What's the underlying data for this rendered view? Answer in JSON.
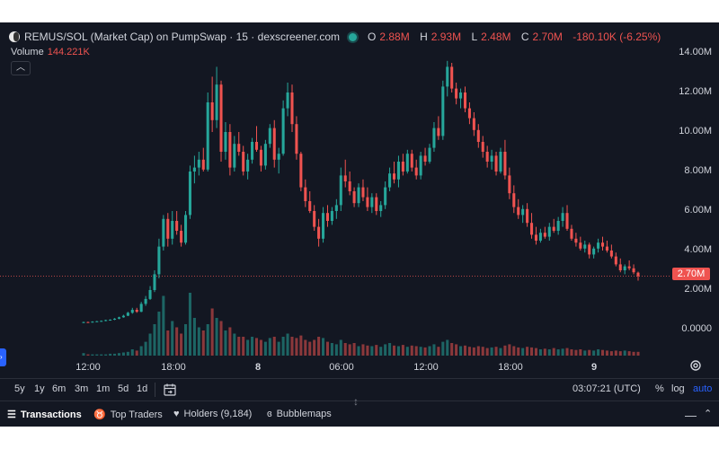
{
  "header": {
    "title": "REMUS/SOL (Market Cap) on PumpSwap · 15 · dexscreener.com",
    "ohlc": {
      "o_label": "O",
      "o_value": "2.88M",
      "h_label": "H",
      "h_value": "2.93M",
      "l_label": "L",
      "l_value": "2.48M",
      "c_label": "C",
      "c_value": "2.70M",
      "change": "-180.10K (-6.25%)"
    }
  },
  "volume": {
    "label": "Volume",
    "value": "144.221K"
  },
  "colors": {
    "background": "#131722",
    "up": "#26a69a",
    "down": "#ef5350",
    "text": "#d1d4dc",
    "accent": "#2962ff"
  },
  "price_axis": {
    "labels": [
      "14.00M",
      "12.00M",
      "10.00M",
      "8.00M",
      "6.00M",
      "4.00M",
      "2.00M",
      "0.0000"
    ]
  },
  "current_price_label": "2.70M",
  "time_axis": {
    "labels": [
      "12:00",
      "18:00",
      "8",
      "06:00",
      "12:00",
      "18:00",
      "9"
    ]
  },
  "toolbar": {
    "ranges": [
      "5y",
      "1y",
      "6m",
      "3m",
      "1m",
      "5d",
      "1d"
    ],
    "clock": "03:07:21 (UTC)",
    "percent": "%",
    "log": "log",
    "auto": "auto"
  },
  "bottom_tabs": {
    "transactions": "Transactions",
    "top_traders": "Top Traders",
    "holders": "Holders (9,184)",
    "bubblemaps": "Bubblemaps"
  },
  "chart_data": {
    "type": "candlestick",
    "y_unit": "market cap (SOL-paired, USD)",
    "ylim": [
      0,
      14500000
    ],
    "x_ticks": [
      "12:00",
      "18:00",
      "8",
      "06:00",
      "12:00",
      "18:00",
      "9"
    ],
    "grid": false,
    "candle_interval": "15",
    "candles": [
      [
        0.35,
        0.4,
        0.33,
        0.38
      ],
      [
        0.38,
        0.4,
        0.34,
        0.36
      ],
      [
        0.36,
        0.42,
        0.35,
        0.4
      ],
      [
        0.4,
        0.44,
        0.38,
        0.42
      ],
      [
        0.42,
        0.46,
        0.4,
        0.44
      ],
      [
        0.44,
        0.5,
        0.42,
        0.48
      ],
      [
        0.48,
        0.52,
        0.45,
        0.5
      ],
      [
        0.5,
        0.58,
        0.48,
        0.55
      ],
      [
        0.55,
        0.65,
        0.52,
        0.62
      ],
      [
        0.62,
        0.75,
        0.6,
        0.7
      ],
      [
        0.7,
        0.9,
        0.68,
        0.85
      ],
      [
        0.85,
        1.1,
        0.8,
        1.0
      ],
      [
        1.0,
        1.1,
        0.85,
        0.9
      ],
      [
        0.9,
        1.4,
        0.88,
        1.3
      ],
      [
        1.3,
        1.7,
        1.2,
        1.55
      ],
      [
        1.55,
        2.2,
        1.5,
        2.0
      ],
      [
        2.0,
        3.0,
        1.9,
        2.8
      ],
      [
        2.8,
        4.6,
        2.6,
        4.2
      ],
      [
        4.2,
        5.8,
        4.0,
        5.6
      ],
      [
        5.6,
        5.9,
        4.2,
        4.6
      ],
      [
        4.6,
        6.0,
        4.3,
        5.5
      ],
      [
        5.5,
        6.0,
        4.8,
        5.0
      ],
      [
        5.0,
        5.3,
        4.2,
        4.4
      ],
      [
        4.4,
        6.0,
        4.3,
        5.8
      ],
      [
        5.8,
        8.3,
        5.6,
        8.0
      ],
      [
        8.0,
        8.8,
        7.4,
        8.2
      ],
      [
        8.2,
        9.0,
        7.8,
        8.6
      ],
      [
        8.6,
        9.2,
        8.0,
        8.1
      ],
      [
        8.1,
        12.0,
        8.0,
        11.5
      ],
      [
        11.5,
        12.8,
        10.0,
        10.6
      ],
      [
        10.6,
        13.3,
        10.2,
        12.4
      ],
      [
        12.4,
        12.6,
        8.5,
        9.0
      ],
      [
        9.0,
        10.5,
        8.6,
        10.0
      ],
      [
        10.0,
        10.4,
        7.8,
        8.2
      ],
      [
        8.2,
        9.8,
        8.0,
        9.4
      ],
      [
        9.4,
        10.0,
        8.8,
        9.0
      ],
      [
        9.0,
        9.3,
        7.8,
        8.0
      ],
      [
        8.0,
        8.9,
        7.6,
        8.6
      ],
      [
        8.6,
        9.7,
        8.4,
        9.5
      ],
      [
        9.5,
        10.3,
        9.0,
        9.1
      ],
      [
        9.1,
        9.3,
        8.0,
        8.3
      ],
      [
        8.3,
        9.6,
        8.1,
        9.4
      ],
      [
        9.4,
        10.4,
        9.2,
        10.2
      ],
      [
        10.2,
        10.6,
        8.2,
        8.6
      ],
      [
        8.6,
        9.2,
        7.9,
        8.9
      ],
      [
        8.9,
        11.6,
        8.8,
        11.2
      ],
      [
        11.2,
        12.5,
        10.8,
        12.0
      ],
      [
        12.0,
        12.4,
        10.0,
        10.4
      ],
      [
        10.4,
        10.8,
        8.6,
        8.9
      ],
      [
        8.9,
        9.0,
        7.0,
        7.2
      ],
      [
        7.2,
        7.6,
        6.2,
        6.5
      ],
      [
        6.5,
        7.0,
        5.9,
        6.0
      ],
      [
        6.0,
        6.3,
        5.0,
        5.2
      ],
      [
        5.2,
        5.6,
        4.2,
        4.6
      ],
      [
        4.6,
        6.2,
        4.4,
        5.9
      ],
      [
        5.9,
        6.3,
        5.2,
        5.5
      ],
      [
        5.5,
        6.2,
        5.3,
        6.0
      ],
      [
        6.0,
        6.6,
        5.6,
        6.3
      ],
      [
        6.3,
        8.2,
        6.0,
        7.8
      ],
      [
        7.8,
        8.6,
        7.2,
        7.5
      ],
      [
        7.5,
        8.0,
        6.8,
        7.0
      ],
      [
        7.0,
        7.2,
        6.2,
        6.4
      ],
      [
        6.4,
        7.4,
        6.2,
        7.2
      ],
      [
        7.2,
        7.6,
        6.5,
        6.7
      ],
      [
        6.7,
        7.2,
        6.0,
        6.2
      ],
      [
        6.2,
        6.9,
        5.9,
        6.7
      ],
      [
        6.7,
        6.9,
        5.8,
        6.0
      ],
      [
        6.0,
        6.5,
        5.7,
        6.3
      ],
      [
        6.3,
        7.5,
        6.1,
        7.2
      ],
      [
        7.2,
        8.2,
        7.0,
        7.9
      ],
      [
        7.9,
        8.5,
        7.4,
        7.6
      ],
      [
        7.6,
        8.8,
        7.2,
        8.5
      ],
      [
        8.5,
        8.9,
        7.8,
        8.0
      ],
      [
        8.0,
        9.1,
        7.9,
        8.9
      ],
      [
        8.9,
        9.1,
        8.0,
        8.2
      ],
      [
        8.2,
        8.6,
        7.6,
        7.8
      ],
      [
        7.8,
        9.0,
        7.6,
        8.8
      ],
      [
        8.8,
        9.2,
        8.3,
        8.5
      ],
      [
        8.5,
        9.4,
        8.4,
        9.2
      ],
      [
        9.2,
        10.5,
        9.0,
        10.2
      ],
      [
        10.2,
        10.8,
        9.6,
        9.8
      ],
      [
        9.8,
        12.6,
        9.6,
        12.3
      ],
      [
        12.3,
        13.6,
        11.8,
        13.3
      ],
      [
        13.3,
        13.5,
        12.0,
        12.2
      ],
      [
        12.2,
        12.5,
        11.4,
        11.7
      ],
      [
        11.7,
        12.2,
        11.2,
        12.0
      ],
      [
        12.0,
        12.3,
        11.0,
        11.2
      ],
      [
        11.2,
        11.5,
        10.4,
        10.7
      ],
      [
        10.7,
        11.0,
        9.8,
        10.1
      ],
      [
        10.1,
        10.4,
        9.2,
        9.5
      ],
      [
        9.5,
        9.8,
        8.7,
        9.0
      ],
      [
        9.0,
        9.3,
        8.2,
        8.5
      ],
      [
        8.5,
        9.1,
        8.1,
        8.8
      ],
      [
        8.8,
        9.0,
        7.8,
        8.0
      ],
      [
        8.0,
        9.2,
        7.9,
        9.0
      ],
      [
        9.0,
        9.6,
        7.6,
        7.8
      ],
      [
        7.8,
        8.2,
        6.6,
        6.9
      ],
      [
        6.9,
        7.3,
        5.9,
        6.2
      ],
      [
        6.2,
        6.6,
        5.6,
        5.8
      ],
      [
        5.8,
        6.3,
        5.4,
        6.1
      ],
      [
        6.1,
        6.4,
        5.2,
        5.4
      ],
      [
        5.4,
        5.9,
        4.6,
        4.8
      ],
      [
        4.8,
        5.2,
        4.3,
        4.5
      ],
      [
        4.5,
        5.1,
        4.4,
        4.9
      ],
      [
        4.9,
        5.2,
        4.6,
        4.7
      ],
      [
        4.7,
        5.4,
        4.5,
        5.2
      ],
      [
        5.2,
        5.6,
        4.9,
        5.0
      ],
      [
        5.0,
        5.7,
        4.8,
        5.5
      ],
      [
        5.5,
        6.2,
        5.2,
        5.9
      ],
      [
        5.9,
        6.3,
        5.0,
        5.1
      ],
      [
        5.1,
        5.3,
        4.5,
        4.6
      ],
      [
        4.6,
        4.9,
        4.2,
        4.4
      ],
      [
        4.4,
        4.7,
        4.0,
        4.1
      ],
      [
        4.1,
        4.5,
        3.9,
        4.3
      ],
      [
        4.3,
        4.4,
        3.6,
        3.8
      ],
      [
        3.8,
        4.2,
        3.6,
        4.1
      ],
      [
        4.1,
        4.6,
        3.9,
        4.4
      ],
      [
        4.4,
        4.7,
        4.0,
        4.2
      ],
      [
        4.2,
        4.5,
        3.9,
        4.0
      ],
      [
        4.0,
        4.3,
        3.6,
        3.7
      ],
      [
        3.7,
        3.9,
        3.2,
        3.3
      ],
      [
        3.3,
        3.6,
        2.9,
        3.0
      ],
      [
        3.0,
        3.3,
        2.8,
        3.2
      ],
      [
        3.2,
        3.5,
        3.0,
        3.1
      ],
      [
        3.1,
        3.3,
        2.8,
        2.9
      ],
      [
        2.88,
        2.93,
        2.48,
        2.7
      ]
    ],
    "volumes": [
      0.04,
      0.02,
      0.02,
      0.02,
      0.02,
      0.02,
      0.03,
      0.03,
      0.04,
      0.05,
      0.06,
      0.1,
      0.08,
      0.15,
      0.22,
      0.35,
      0.5,
      0.7,
      0.95,
      0.4,
      0.55,
      0.45,
      0.35,
      0.5,
      1.0,
      0.6,
      0.45,
      0.4,
      0.5,
      0.75,
      0.6,
      0.55,
      0.4,
      0.45,
      0.35,
      0.3,
      0.3,
      0.25,
      0.3,
      0.28,
      0.25,
      0.22,
      0.28,
      0.3,
      0.22,
      0.3,
      0.35,
      0.3,
      0.28,
      0.32,
      0.25,
      0.22,
      0.25,
      0.3,
      0.28,
      0.22,
      0.2,
      0.18,
      0.25,
      0.2,
      0.18,
      0.2,
      0.15,
      0.18,
      0.16,
      0.15,
      0.17,
      0.14,
      0.18,
      0.2,
      0.16,
      0.15,
      0.17,
      0.14,
      0.16,
      0.15,
      0.14,
      0.13,
      0.15,
      0.18,
      0.14,
      0.22,
      0.25,
      0.2,
      0.18,
      0.15,
      0.16,
      0.14,
      0.13,
      0.15,
      0.14,
      0.12,
      0.13,
      0.14,
      0.12,
      0.16,
      0.18,
      0.15,
      0.13,
      0.12,
      0.14,
      0.13,
      0.12,
      0.1,
      0.11,
      0.1,
      0.12,
      0.1,
      0.11,
      0.12,
      0.1,
      0.09,
      0.1,
      0.08,
      0.09,
      0.08,
      0.1,
      0.09,
      0.08,
      0.07,
      0.08,
      0.07,
      0.08,
      0.07,
      0.06,
      0.06
    ]
  }
}
